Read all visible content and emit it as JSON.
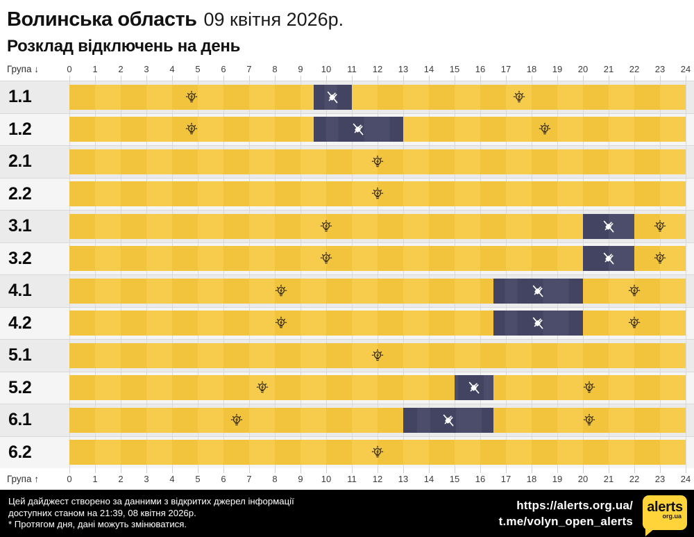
{
  "header": {
    "region": "Волинська область",
    "date": "09 квітня 2026р.",
    "subtitle": "Розклад відключень на день"
  },
  "axis": {
    "group_label_top": "Група ↓",
    "group_label_bottom": "Група ↑",
    "ticks": [
      "0",
      "1",
      "2",
      "3",
      "4",
      "5",
      "6",
      "7",
      "8",
      "9",
      "10",
      "11",
      "12",
      "13",
      "14",
      "15",
      "16",
      "17",
      "18",
      "19",
      "20",
      "21",
      "22",
      "23",
      "24"
    ]
  },
  "chart_data": {
    "type": "timeline",
    "title": "Розклад відключень на день",
    "x_unit": "hour_of_day",
    "x_range": [
      0,
      24
    ],
    "on_state_color_meaning": "power on (yellow)",
    "off_state_color_meaning": "power outage (dark navy)",
    "groups": [
      {
        "label": "1.1",
        "outages": [
          {
            "start": 9.5,
            "end": 11
          }
        ],
        "bulb_markers": [
          4.75,
          17.5
        ]
      },
      {
        "label": "1.2",
        "outages": [
          {
            "start": 9.5,
            "end": 13
          }
        ],
        "bulb_markers": [
          4.75,
          18.5
        ]
      },
      {
        "label": "2.1",
        "outages": [],
        "bulb_markers": [
          12
        ]
      },
      {
        "label": "2.2",
        "outages": [],
        "bulb_markers": [
          12
        ]
      },
      {
        "label": "3.1",
        "outages": [
          {
            "start": 20,
            "end": 22
          }
        ],
        "bulb_markers": [
          10,
          23
        ]
      },
      {
        "label": "3.2",
        "outages": [
          {
            "start": 20,
            "end": 22
          }
        ],
        "bulb_markers": [
          10,
          23
        ]
      },
      {
        "label": "4.1",
        "outages": [
          {
            "start": 16.5,
            "end": 20
          }
        ],
        "bulb_markers": [
          8.25,
          22
        ]
      },
      {
        "label": "4.2",
        "outages": [
          {
            "start": 16.5,
            "end": 20
          }
        ],
        "bulb_markers": [
          8.25,
          22
        ]
      },
      {
        "label": "5.1",
        "outages": [],
        "bulb_markers": [
          12
        ]
      },
      {
        "label": "5.2",
        "outages": [
          {
            "start": 15,
            "end": 16.5
          }
        ],
        "bulb_markers": [
          7.5,
          20.25
        ]
      },
      {
        "label": "6.1",
        "outages": [
          {
            "start": 13,
            "end": 16.5
          }
        ],
        "bulb_markers": [
          6.5,
          20.25
        ]
      },
      {
        "label": "6.2",
        "outages": [],
        "bulb_markers": [
          12
        ]
      }
    ],
    "icons": {
      "power_on": "lightbulb-icon",
      "power_off": "unplugged-icon"
    }
  },
  "colors": {
    "bar_yellow_a": "#F2C33C",
    "bar_yellow_b": "#F7CB4C",
    "outage_navy_a": "#424461",
    "outage_navy_b": "#4B4D6A",
    "row_bg_odd": "#EBEBEB",
    "row_bg_even": "#F5F5F5",
    "footer_bg": "#000000",
    "logo_yellow": "#FFD43B"
  },
  "footer": {
    "disclaimer_line1": "Цей дайджест створено за данними з відкритих джерел інформації",
    "disclaimer_line2": "доступних станом на 21:39, 08 квітня 2026р.",
    "disclaimer_line3": "* Протягом дня, дані можуть змінюватися.",
    "url_primary": "https://alerts.org.ua/",
    "url_telegram": "t.me/volyn_open_alerts",
    "logo_text": "alerts",
    "logo_sub": "org.ua"
  }
}
